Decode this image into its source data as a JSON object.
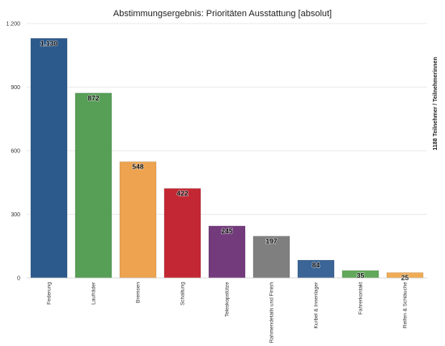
{
  "chart_data": {
    "type": "bar",
    "title": "Abstimmungsergebnis: Prioritäten Ausstattung [absolut]",
    "xlabel": "",
    "ylabel": "1188 Teilnehmer / Teilnehmerinnen",
    "ylabel_position": "right",
    "ylim": [
      0,
      1200
    ],
    "yticks": [
      0,
      300,
      600,
      900,
      1200
    ],
    "ytick_labels": [
      "0",
      "300",
      "600",
      "900",
      "1.200"
    ],
    "grid": true,
    "categories": [
      "Federung",
      "Laufräder",
      "Bremsen",
      "Schaltung",
      "Teleskopstütze",
      "Rahmendetails und Finish",
      "Kurbel & Innenlager",
      "Fahrerkontakt",
      "Reifen & Schläuche"
    ],
    "values": [
      1130,
      872,
      548,
      422,
      245,
      197,
      84,
      35,
      25
    ],
    "value_labels": [
      "1.130",
      "872",
      "548",
      "422",
      "245",
      "197",
      "84",
      "35",
      "25"
    ],
    "colors": [
      "#2d5a8c",
      "#579e57",
      "#eda34f",
      "#c32733",
      "#733a7c",
      "#7f7f7f",
      "#3b6596",
      "#61a85b",
      "#f0ab55"
    ]
  }
}
